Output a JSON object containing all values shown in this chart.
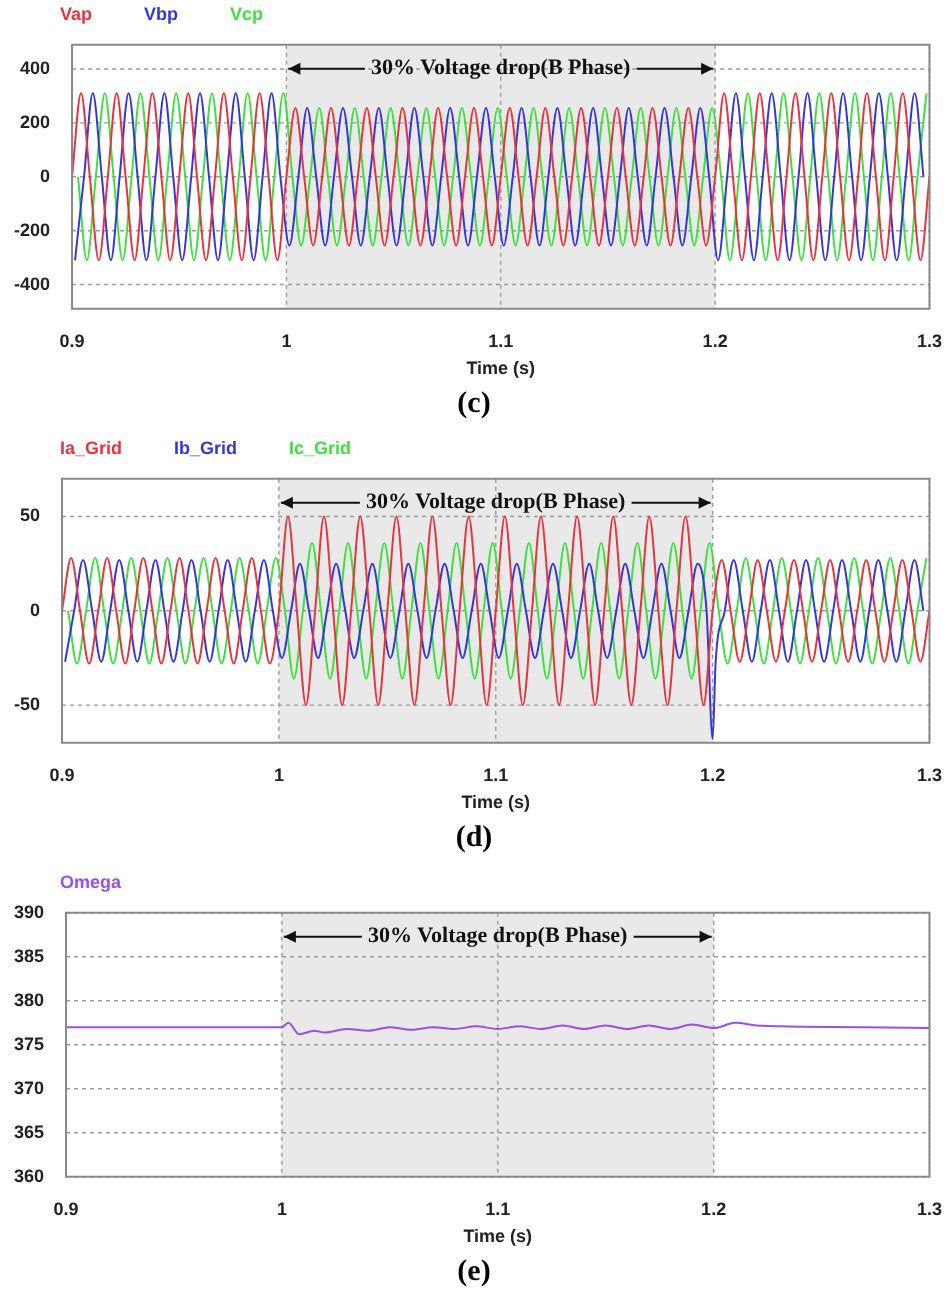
{
  "chart_data": [
    {
      "type": "line",
      "xlabel": "Time (s)",
      "xlim": [
        0.9,
        1.3
      ],
      "xticks": [
        0.9,
        1,
        1.1,
        1.2,
        1.3
      ],
      "ylim": [
        -490,
        490
      ],
      "yticks": [
        -400,
        -200,
        0,
        200,
        400
      ],
      "grid": true,
      "legend": "top left",
      "marker": "none",
      "line_style": "solid",
      "bands": [
        {
          "axis": "x",
          "from": 1,
          "to": 1.2,
          "label": "30% Voltage drop(B Phase)",
          "color": "#e9e9e9"
        }
      ],
      "annotations": [
        "(c)"
      ],
      "series": [
        {
          "name": "Vap",
          "color": "#e8333f",
          "x": [
            0.9,
            0.9042,
            0.9083,
            0.9125,
            0.9167,
            0.9208,
            0.925,
            0.9292,
            0.9333,
            0.9375,
            0.9417,
            0.9458,
            0.95,
            0.9542,
            0.9583,
            0.9625,
            0.9667,
            0.9708,
            0.975,
            0.9792,
            0.9833,
            0.9875,
            0.9917,
            0.9958,
            1,
            1.0042,
            1.0083,
            1.0125,
            1.0167,
            1.0208,
            1.025,
            1.0292,
            1.0333,
            1.0375,
            1.0417,
            1.0458,
            1.05,
            1.0542,
            1.0583,
            1.0625,
            1.0667,
            1.0708,
            1.075,
            1.0792,
            1.0833,
            1.0875,
            1.0917,
            1.0958,
            1.1,
            1.1042,
            1.1083,
            1.1125,
            1.1167,
            1.1208,
            1.125,
            1.1292,
            1.1333,
            1.1375,
            1.1417,
            1.1458,
            1.15,
            1.1542,
            1.1583,
            1.1625,
            1.1667,
            1.1708,
            1.175,
            1.1792,
            1.1833,
            1.1875,
            1.1917,
            1.1958,
            1.2,
            1.2042,
            1.2083,
            1.2125,
            1.2167,
            1.2208,
            1.225,
            1.2292,
            1.2333,
            1.2375,
            1.2417,
            1.2458,
            1.25,
            1.2542,
            1.2583,
            1.2625,
            1.2667,
            1.2708,
            1.275,
            1.2792,
            1.2833,
            1.2875,
            1.2917,
            1.2958,
            1.3
          ],
          "values": [
            0,
            310,
            0,
            -310,
            0,
            310,
            0,
            -310,
            0,
            310,
            0,
            -310,
            0,
            310,
            0,
            -310,
            0,
            310,
            0,
            -310,
            0,
            310,
            0,
            -310,
            0,
            255,
            0,
            -255,
            0,
            255,
            0,
            -255,
            0,
            255,
            0,
            -255,
            0,
            255,
            0,
            -255,
            0,
            255,
            0,
            -255,
            0,
            255,
            0,
            -255,
            0,
            255,
            0,
            -255,
            0,
            255,
            0,
            -255,
            0,
            255,
            0,
            -255,
            0,
            255,
            0,
            -255,
            0,
            255,
            0,
            -255,
            0,
            255,
            0,
            -255,
            0,
            310,
            0,
            -310,
            0,
            310,
            0,
            -310,
            0,
            310,
            0,
            -310,
            0,
            310,
            0,
            -310,
            0,
            310,
            0,
            -310,
            0,
            310,
            0,
            -310,
            0
          ]
        },
        {
          "name": "Vbp",
          "color": "#3535e0",
          "x": [
            0.9014,
            0.9056,
            0.9097,
            0.9139,
            0.9181,
            0.9222,
            0.9264,
            0.9306,
            0.9347,
            0.9389,
            0.9431,
            0.9472,
            0.9514,
            0.9556,
            0.9597,
            0.9639,
            0.9681,
            0.9722,
            0.9764,
            0.9806,
            0.9847,
            0.9889,
            0.9931,
            0.9972,
            1.0014,
            1.0056,
            1.0097,
            1.0139,
            1.0181,
            1.0222,
            1.0264,
            1.0306,
            1.0347,
            1.0389,
            1.0431,
            1.0472,
            1.0514,
            1.0556,
            1.0597,
            1.0639,
            1.0681,
            1.0722,
            1.0764,
            1.0806,
            1.0847,
            1.0889,
            1.0931,
            1.0972,
            1.1014,
            1.1056,
            1.1097,
            1.1139,
            1.1181,
            1.1222,
            1.1264,
            1.1306,
            1.1347,
            1.1389,
            1.1431,
            1.1472,
            1.1514,
            1.1556,
            1.1597,
            1.1639,
            1.1681,
            1.1722,
            1.1764,
            1.1806,
            1.1847,
            1.1889,
            1.1931,
            1.1972,
            1.2014,
            1.2056,
            1.2097,
            1.2139,
            1.2181,
            1.2222,
            1.2264,
            1.2306,
            1.2347,
            1.2389,
            1.2431,
            1.2472,
            1.2514,
            1.2556,
            1.2597,
            1.2639,
            1.2681,
            1.2722,
            1.2764,
            1.2806,
            1.2847,
            1.2889,
            1.2931,
            1.2972
          ],
          "values": [
            -310,
            0,
            310,
            0,
            -310,
            0,
            310,
            0,
            -310,
            0,
            310,
            0,
            -310,
            0,
            310,
            0,
            -310,
            0,
            310,
            0,
            -310,
            0,
            310,
            0,
            -255,
            0,
            255,
            0,
            -255,
            0,
            255,
            0,
            -255,
            0,
            255,
            0,
            -255,
            0,
            255,
            0,
            -255,
            0,
            255,
            0,
            -255,
            0,
            255,
            0,
            -255,
            0,
            255,
            0,
            -255,
            0,
            255,
            0,
            -255,
            0,
            255,
            0,
            -255,
            0,
            255,
            0,
            -255,
            0,
            255,
            0,
            -255,
            0,
            255,
            0,
            -310,
            0,
            310,
            0,
            -310,
            0,
            310,
            0,
            -310,
            0,
            310,
            0,
            -310,
            0,
            310,
            0,
            -310,
            0,
            310,
            0,
            -310,
            0,
            310,
            0
          ]
        },
        {
          "name": "Vcp",
          "color": "#3ee03e",
          "x": [
            0.9028,
            0.9069,
            0.9111,
            0.9153,
            0.9194,
            0.9236,
            0.9278,
            0.9319,
            0.9361,
            0.9403,
            0.9444,
            0.9486,
            0.9528,
            0.9569,
            0.9611,
            0.9653,
            0.9694,
            0.9736,
            0.9778,
            0.9819,
            0.9861,
            0.9903,
            0.9944,
            0.9986,
            1.0028,
            1.0069,
            1.0111,
            1.0153,
            1.0194,
            1.0236,
            1.0278,
            1.0319,
            1.0361,
            1.0403,
            1.0444,
            1.0486,
            1.0528,
            1.0569,
            1.0611,
            1.0653,
            1.0694,
            1.0736,
            1.0778,
            1.0819,
            1.0861,
            1.0903,
            1.0944,
            1.0986,
            1.1028,
            1.1069,
            1.1111,
            1.1153,
            1.1194,
            1.1236,
            1.1278,
            1.1319,
            1.1361,
            1.1403,
            1.1444,
            1.1486,
            1.1528,
            1.1569,
            1.1611,
            1.1653,
            1.1694,
            1.1736,
            1.1778,
            1.1819,
            1.1861,
            1.1903,
            1.1944,
            1.1986,
            1.2028,
            1.2069,
            1.2111,
            1.2153,
            1.2194,
            1.2236,
            1.2278,
            1.2319,
            1.2361,
            1.2403,
            1.2444,
            1.2486,
            1.2528,
            1.2569,
            1.2611,
            1.2653,
            1.2694,
            1.2736,
            1.2778,
            1.2819,
            1.2861,
            1.2903,
            1.2944,
            1.2986
          ],
          "values": [
            0,
            -310,
            0,
            310,
            0,
            -310,
            0,
            310,
            0,
            -310,
            0,
            310,
            0,
            -310,
            0,
            310,
            0,
            -310,
            0,
            310,
            0,
            -310,
            0,
            310,
            0,
            -255,
            0,
            255,
            0,
            -255,
            0,
            255,
            0,
            -255,
            0,
            255,
            0,
            -255,
            0,
            255,
            0,
            -255,
            0,
            255,
            0,
            -255,
            0,
            255,
            0,
            -255,
            0,
            255,
            0,
            -255,
            0,
            255,
            0,
            -255,
            0,
            255,
            0,
            -255,
            0,
            255,
            0,
            -255,
            0,
            255,
            0,
            -255,
            0,
            255,
            0,
            -310,
            0,
            310,
            0,
            -310,
            0,
            310,
            0,
            -310,
            0,
            310,
            0,
            -310,
            0,
            310,
            0,
            -310,
            0,
            310,
            0,
            -310,
            0,
            310
          ]
        }
      ]
    },
    {
      "type": "line",
      "xlabel": "Time (s)",
      "xlim": [
        0.9,
        1.3
      ],
      "xticks": [
        0.9,
        1,
        1.1,
        1.2,
        1.3
      ],
      "ylim": [
        -70,
        70
      ],
      "yticks": [
        -50,
        0,
        50
      ],
      "grid": true,
      "legend": "top left",
      "marker": "none",
      "line_style": "solid",
      "bands": [
        {
          "axis": "x",
          "from": 1,
          "to": 1.2,
          "label": "30% Voltage drop(B Phase)",
          "color": "#e9e9e9"
        }
      ],
      "annotations": [
        "(d)"
      ],
      "series": [
        {
          "name": "Ia_Grid",
          "color": "#e8333f",
          "x": [
            0.9,
            0.9042,
            0.9083,
            0.9125,
            0.9167,
            0.9208,
            0.925,
            0.9292,
            0.9333,
            0.9375,
            0.9417,
            0.9458,
            0.95,
            0.9542,
            0.9583,
            0.9625,
            0.9667,
            0.9708,
            0.975,
            0.9792,
            0.9833,
            0.9875,
            0.9917,
            0.9958,
            1,
            1.0042,
            1.0083,
            1.0125,
            1.0167,
            1.0208,
            1.025,
            1.0292,
            1.0333,
            1.0375,
            1.0417,
            1.0458,
            1.05,
            1.0542,
            1.0583,
            1.0625,
            1.0667,
            1.0708,
            1.075,
            1.0792,
            1.0833,
            1.0875,
            1.0917,
            1.0958,
            1.1,
            1.1042,
            1.1083,
            1.1125,
            1.1167,
            1.1208,
            1.125,
            1.1292,
            1.1333,
            1.1375,
            1.1417,
            1.1458,
            1.15,
            1.1542,
            1.1583,
            1.1625,
            1.1667,
            1.1708,
            1.175,
            1.1792,
            1.1833,
            1.1875,
            1.1917,
            1.1958,
            1.2,
            1.2042,
            1.2083,
            1.2125,
            1.2167,
            1.2208,
            1.225,
            1.2292,
            1.2333,
            1.2375,
            1.2417,
            1.2458,
            1.25,
            1.2542,
            1.2583,
            1.2625,
            1.2667,
            1.2708,
            1.275,
            1.2792,
            1.2833,
            1.2875,
            1.2917,
            1.2958,
            1.3
          ],
          "values": [
            0,
            28,
            0,
            -28,
            0,
            28,
            0,
            -28,
            0,
            28,
            0,
            -28,
            0,
            28,
            0,
            -28,
            0,
            28,
            0,
            -28,
            0,
            28,
            0,
            -28,
            0,
            50,
            0,
            -50,
            0,
            50,
            0,
            -50,
            0,
            50,
            0,
            -50,
            0,
            50,
            0,
            -50,
            0,
            50,
            0,
            -50,
            0,
            50,
            0,
            -50,
            0,
            50,
            0,
            -50,
            0,
            50,
            0,
            -50,
            0,
            50,
            0,
            -50,
            0,
            50,
            0,
            -50,
            0,
            50,
            0,
            -50,
            0,
            50,
            0,
            -50,
            0,
            27,
            0,
            -27,
            0,
            27,
            0,
            -27,
            0,
            27,
            0,
            -27,
            0,
            27,
            0,
            -27,
            0,
            27,
            0,
            -27,
            0,
            27,
            0,
            -27,
            0
          ]
        },
        {
          "name": "Ib_Grid",
          "color": "#3535e0",
          "x": [
            0.9014,
            0.9056,
            0.9097,
            0.9139,
            0.9181,
            0.9222,
            0.9264,
            0.9306,
            0.9347,
            0.9389,
            0.9431,
            0.9472,
            0.9514,
            0.9556,
            0.9597,
            0.9639,
            0.9681,
            0.9722,
            0.9764,
            0.9806,
            0.9847,
            0.9889,
            0.9931,
            0.9972,
            1.0014,
            1.0056,
            1.0097,
            1.0139,
            1.0181,
            1.0222,
            1.0264,
            1.0306,
            1.0347,
            1.0389,
            1.0431,
            1.0472,
            1.0514,
            1.0556,
            1.0597,
            1.0639,
            1.0681,
            1.0722,
            1.0764,
            1.0806,
            1.0847,
            1.0889,
            1.0931,
            1.0972,
            1.1014,
            1.1056,
            1.1097,
            1.1139,
            1.1181,
            1.1222,
            1.1264,
            1.1306,
            1.1347,
            1.1389,
            1.1431,
            1.1472,
            1.1514,
            1.1556,
            1.1597,
            1.1639,
            1.1681,
            1.1722,
            1.1764,
            1.1806,
            1.1847,
            1.1889,
            1.1931,
            1.1972,
            1.2,
            1.2014,
            1.2056,
            1.2097,
            1.2139,
            1.2181,
            1.2222,
            1.2264,
            1.2306,
            1.2347,
            1.2389,
            1.2431,
            1.2472,
            1.2514,
            1.2556,
            1.2597,
            1.2639,
            1.2681,
            1.2722,
            1.2764,
            1.2806,
            1.2847,
            1.2889,
            1.2931,
            1.2972
          ],
          "values": [
            -27,
            0,
            27,
            0,
            -27,
            0,
            27,
            0,
            -27,
            0,
            27,
            0,
            -27,
            0,
            27,
            0,
            -27,
            0,
            27,
            0,
            -27,
            0,
            27,
            0,
            -25,
            0,
            25,
            0,
            -25,
            0,
            25,
            0,
            -25,
            0,
            25,
            0,
            -25,
            0,
            25,
            0,
            -25,
            0,
            25,
            0,
            -25,
            0,
            25,
            0,
            -25,
            0,
            25,
            0,
            -25,
            0,
            25,
            0,
            -25,
            0,
            25,
            0,
            -25,
            0,
            25,
            0,
            -25,
            0,
            25,
            0,
            -25,
            0,
            25,
            0,
            -68,
            -27,
            0,
            27,
            0,
            -27,
            0,
            27,
            0,
            -27,
            0,
            27,
            0,
            -27,
            0,
            27,
            0,
            -27,
            0,
            27,
            0,
            -27,
            0,
            27,
            0
          ]
        },
        {
          "name": "Ic_Grid",
          "color": "#3ee03e",
          "x": [
            0.9028,
            0.9069,
            0.9111,
            0.9153,
            0.9194,
            0.9236,
            0.9278,
            0.9319,
            0.9361,
            0.9403,
            0.9444,
            0.9486,
            0.9528,
            0.9569,
            0.9611,
            0.9653,
            0.9694,
            0.9736,
            0.9778,
            0.9819,
            0.9861,
            0.9903,
            0.9944,
            0.9986,
            1.0028,
            1.0069,
            1.0111,
            1.0153,
            1.0194,
            1.0236,
            1.0278,
            1.0319,
            1.0361,
            1.0403,
            1.0444,
            1.0486,
            1.0528,
            1.0569,
            1.0611,
            1.0653,
            1.0694,
            1.0736,
            1.0778,
            1.0819,
            1.0861,
            1.0903,
            1.0944,
            1.0986,
            1.1028,
            1.1069,
            1.1111,
            1.1153,
            1.1194,
            1.1236,
            1.1278,
            1.1319,
            1.1361,
            1.1403,
            1.1444,
            1.1486,
            1.1528,
            1.1569,
            1.1611,
            1.1653,
            1.1694,
            1.1736,
            1.1778,
            1.1819,
            1.1861,
            1.1903,
            1.1944,
            1.1986,
            1.2028,
            1.2069,
            1.2111,
            1.2153,
            1.2194,
            1.2236,
            1.2278,
            1.2319,
            1.2361,
            1.2403,
            1.2444,
            1.2486,
            1.2528,
            1.2569,
            1.2611,
            1.2653,
            1.2694,
            1.2736,
            1.2778,
            1.2819,
            1.2861,
            1.2903,
            1.2944,
            1.2986
          ],
          "values": [
            0,
            -28,
            0,
            28,
            0,
            -28,
            0,
            28,
            0,
            -28,
            0,
            28,
            0,
            -28,
            0,
            28,
            0,
            -28,
            0,
            28,
            0,
            -28,
            0,
            28,
            0,
            -36,
            0,
            36,
            0,
            -36,
            0,
            36,
            0,
            -36,
            0,
            36,
            0,
            -36,
            0,
            36,
            0,
            -36,
            0,
            36,
            0,
            -36,
            0,
            36,
            0,
            -36,
            0,
            36,
            0,
            -36,
            0,
            36,
            0,
            -36,
            0,
            36,
            0,
            -36,
            0,
            36,
            0,
            -36,
            0,
            36,
            0,
            -36,
            0,
            36,
            0,
            -28,
            0,
            28,
            0,
            -28,
            0,
            28,
            0,
            -28,
            0,
            28,
            0,
            -28,
            0,
            28,
            0,
            -28,
            0,
            28,
            0,
            -28,
            0,
            28
          ]
        }
      ]
    },
    {
      "type": "line",
      "xlabel": "Time (s)",
      "xlim": [
        0.9,
        1.3
      ],
      "xticks": [
        0.9,
        1,
        1.1,
        1.2,
        1.3
      ],
      "ylim": [
        360,
        390
      ],
      "yticks": [
        360,
        365,
        370,
        375,
        380,
        385,
        390
      ],
      "grid": true,
      "legend": "top left",
      "marker": "none",
      "line_style": "solid",
      "bands": [
        {
          "axis": "x",
          "from": 1,
          "to": 1.2,
          "label": "30% Voltage drop(B Phase)",
          "color": "#e9e9e9"
        }
      ],
      "annotations": [
        "(e)"
      ],
      "series": [
        {
          "name": "Omega",
          "color": "#9a4df0",
          "x": [
            0.9,
            1,
            1.003,
            1.008,
            1.015,
            1.02,
            1.03,
            1.04,
            1.05,
            1.06,
            1.07,
            1.08,
            1.09,
            1.1,
            1.11,
            1.12,
            1.13,
            1.14,
            1.15,
            1.16,
            1.17,
            1.18,
            1.19,
            1.2,
            1.21,
            1.22,
            1.23,
            1.27,
            1.3
          ],
          "values": [
            377,
            377,
            377.5,
            376.2,
            376.6,
            376.4,
            376.8,
            376.6,
            377,
            376.7,
            377,
            376.8,
            377.1,
            376.8,
            377.1,
            376.8,
            377.2,
            376.8,
            377.2,
            376.8,
            377.2,
            376.8,
            377.3,
            376.9,
            377.5,
            377.2,
            377.1,
            377,
            376.9
          ]
        }
      ]
    }
  ]
}
